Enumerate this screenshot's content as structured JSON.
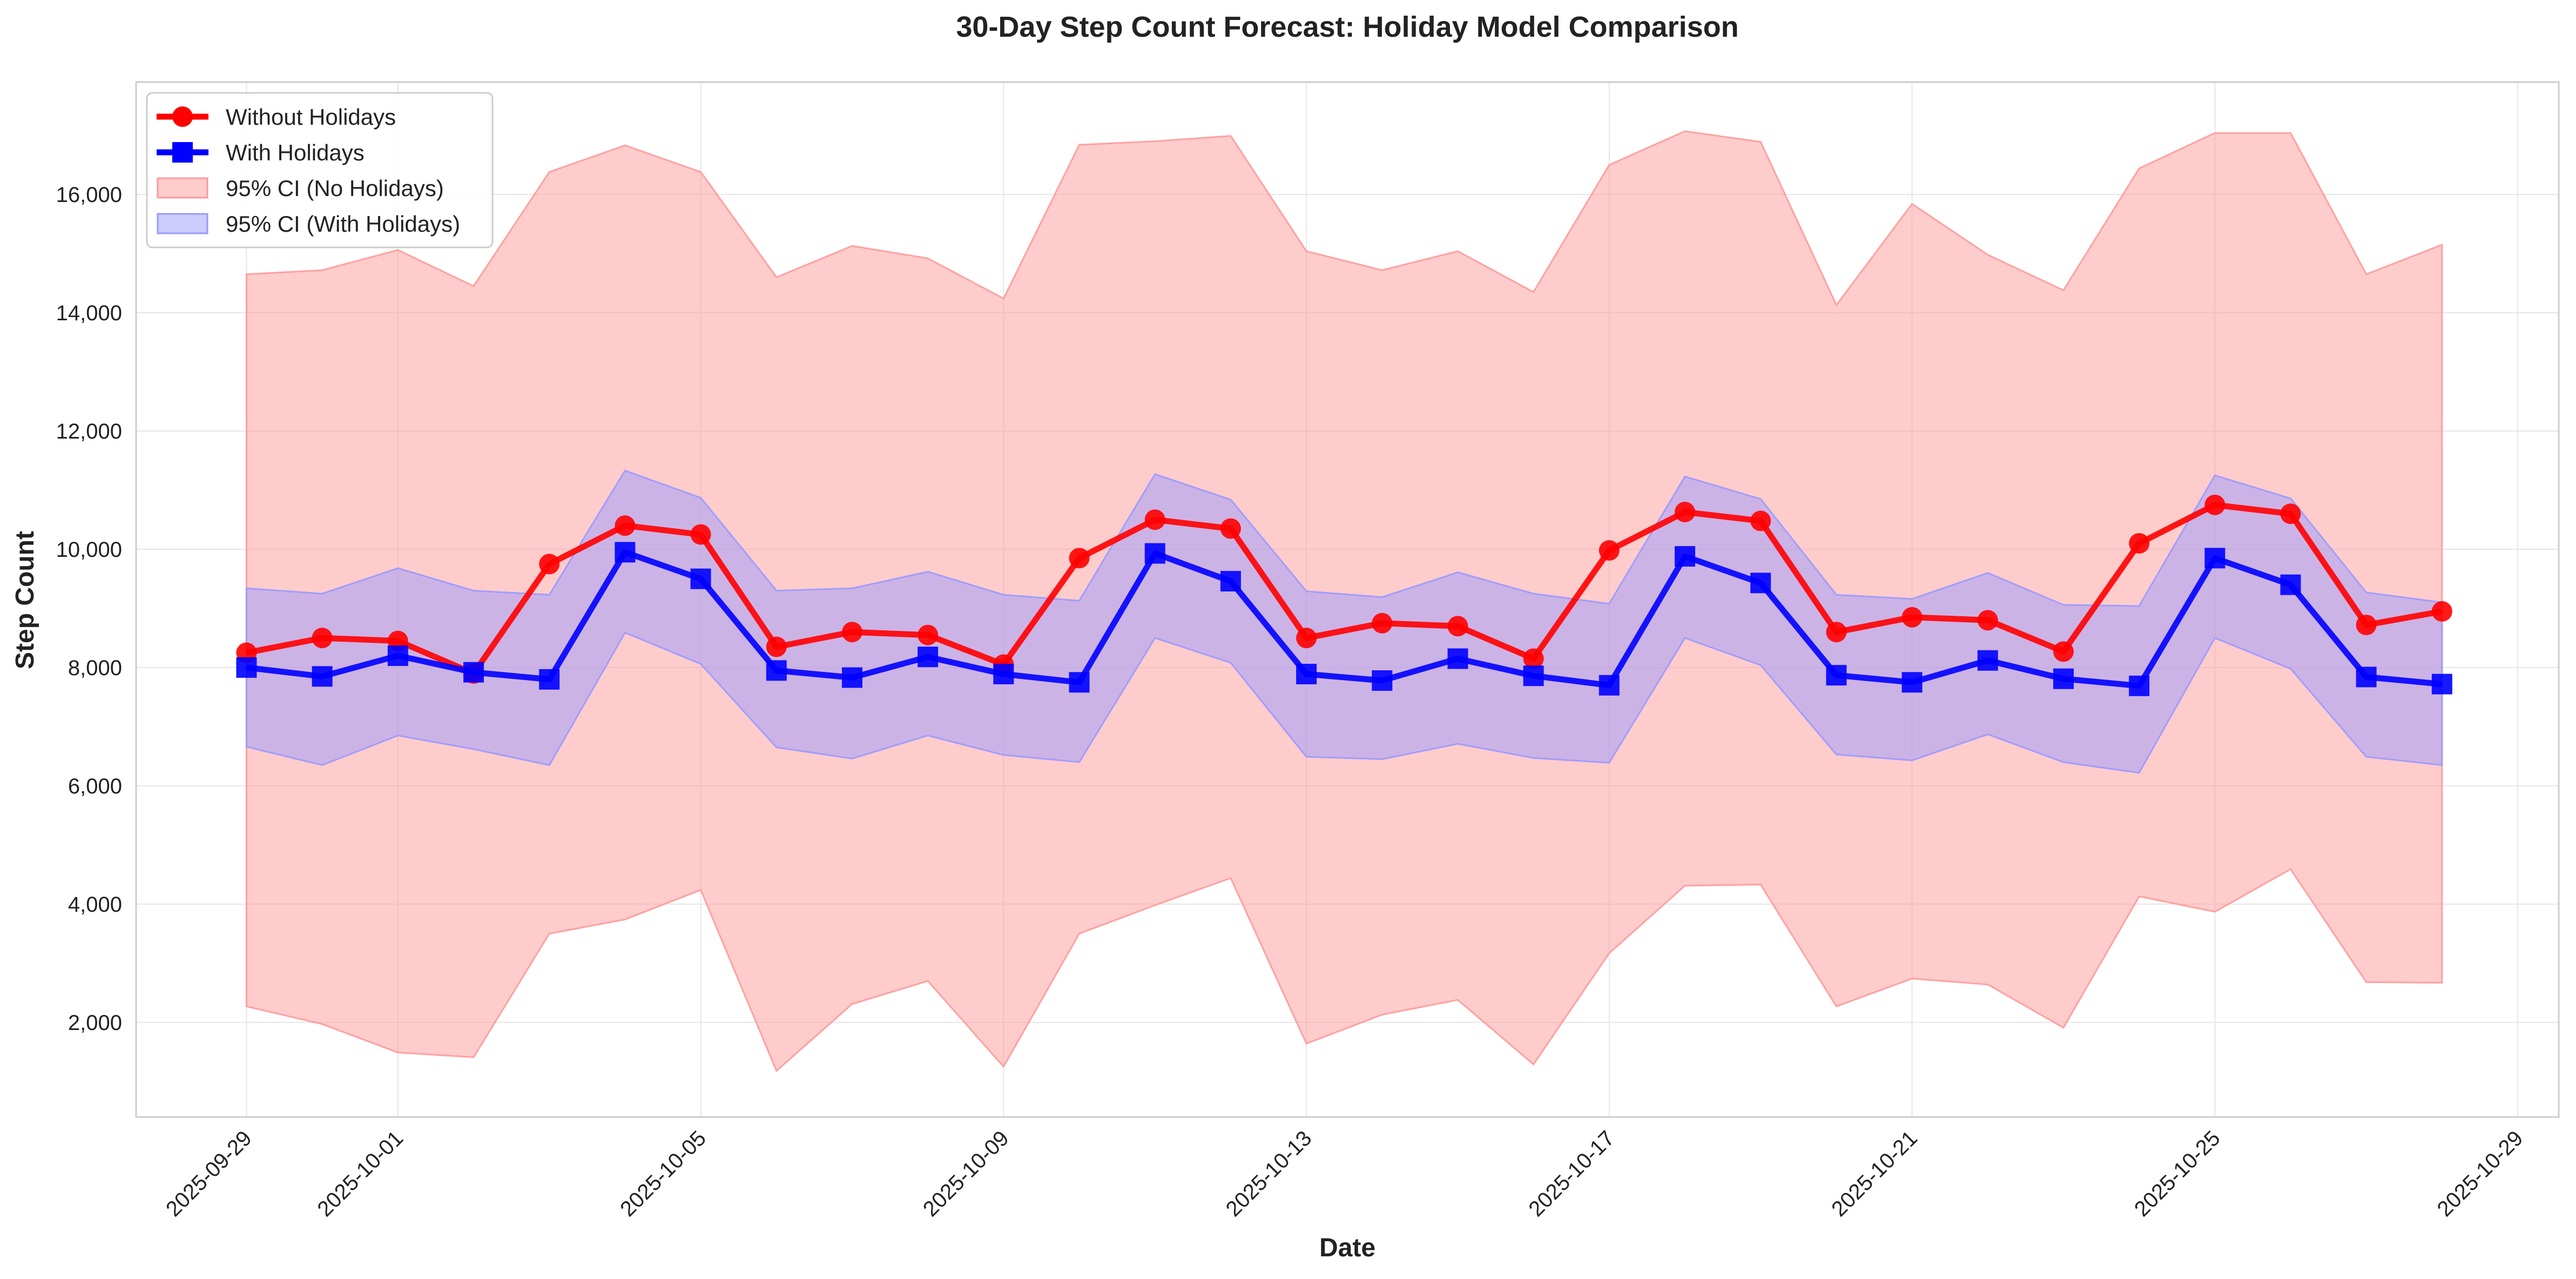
{
  "chart_data": {
    "type": "line",
    "title": "30-Day Step Count Forecast: Holiday Model Comparison",
    "xlabel": "Date",
    "ylabel": "Step Count",
    "x": [
      "2025-09-29",
      "2025-09-30",
      "2025-10-01",
      "2025-10-02",
      "2025-10-03",
      "2025-10-04",
      "2025-10-05",
      "2025-10-06",
      "2025-10-07",
      "2025-10-08",
      "2025-10-09",
      "2025-10-10",
      "2025-10-11",
      "2025-10-12",
      "2025-10-13",
      "2025-10-14",
      "2025-10-15",
      "2025-10-16",
      "2025-10-17",
      "2025-10-18",
      "2025-10-19",
      "2025-10-20",
      "2025-10-21",
      "2025-10-22",
      "2025-10-23",
      "2025-10-24",
      "2025-10-25",
      "2025-10-26",
      "2025-10-27",
      "2025-10-28"
    ],
    "xlim": [
      "2025-09-27T13:00",
      "2025-10-29T13:00"
    ],
    "ylim": [
      400,
      17900
    ],
    "x_ticks": [
      "2025-09-29",
      "2025-10-01",
      "2025-10-05",
      "2025-10-09",
      "2025-10-13",
      "2025-10-17",
      "2025-10-21",
      "2025-10-25",
      "2025-10-29"
    ],
    "y_ticks": [
      2000,
      4000,
      6000,
      8000,
      10000,
      12000,
      14000,
      16000
    ],
    "y_tick_labels": [
      "2,000",
      "4,000",
      "6,000",
      "8,000",
      "10,000",
      "12,000",
      "14,000",
      "16,000"
    ],
    "grid": true,
    "legend_position": "top-left",
    "series": [
      {
        "name": "Without Holidays",
        "color": "#ff0000",
        "marker": "circle",
        "values": [
          8250,
          8500,
          8450,
          7900,
          9750,
          10400,
          10250,
          8350,
          8600,
          8550,
          8050,
          9850,
          10500,
          10350,
          8500,
          8750,
          8700,
          8150,
          9980,
          10630,
          10480,
          8600,
          8850,
          8800,
          8270,
          10100,
          10750,
          10600,
          8720,
          8950
        ]
      },
      {
        "name": "With Holidays",
        "color": "#0000ff",
        "marker": "square",
        "values": [
          8000,
          7850,
          8200,
          7920,
          7800,
          9950,
          9500,
          7950,
          7830,
          8180,
          7890,
          7750,
          9930,
          9460,
          7890,
          7780,
          8150,
          7860,
          7700,
          9880,
          9430,
          7870,
          7750,
          8120,
          7810,
          7690,
          9850,
          9400,
          7840,
          7720
        ]
      }
    ],
    "bands": [
      {
        "name": "95% CI (No Holidays)",
        "color": "#ff9999",
        "upper": [
          14650,
          14720,
          15060,
          14450,
          16380,
          16830,
          16380,
          14600,
          15130,
          14920,
          14240,
          16840,
          16900,
          16990,
          15040,
          14720,
          15040,
          14350,
          16500,
          17070,
          16890,
          14130,
          15840,
          14980,
          14380,
          16440,
          17040,
          17040,
          14650,
          15150
        ],
        "lower": [
          2270,
          1970,
          1490,
          1410,
          3500,
          3740,
          4240,
          1180,
          2310,
          2700,
          1250,
          3500,
          3980,
          4440,
          1640,
          2130,
          2380,
          1290,
          3170,
          4310,
          4330,
          2270,
          2740,
          2640,
          1910,
          4130,
          3870,
          4590,
          2680,
          2670
        ]
      },
      {
        "name": "95% CI (With Holidays)",
        "color": "#9999ff",
        "upper": [
          9340,
          9250,
          9680,
          9300,
          9230,
          11330,
          10870,
          9300,
          9340,
          9620,
          9230,
          9130,
          11270,
          10840,
          9290,
          9190,
          9610,
          9250,
          9080,
          11230,
          10850,
          9230,
          9160,
          9600,
          9060,
          9040,
          11250,
          10860,
          9270,
          9100
        ],
        "lower": [
          6660,
          6350,
          6850,
          6620,
          6350,
          8590,
          8060,
          6650,
          6460,
          6850,
          6520,
          6400,
          8500,
          8080,
          6490,
          6450,
          6710,
          6470,
          6390,
          8500,
          8040,
          6530,
          6430,
          6870,
          6400,
          6220,
          8500,
          7980,
          6490,
          6350
        ]
      }
    ]
  }
}
